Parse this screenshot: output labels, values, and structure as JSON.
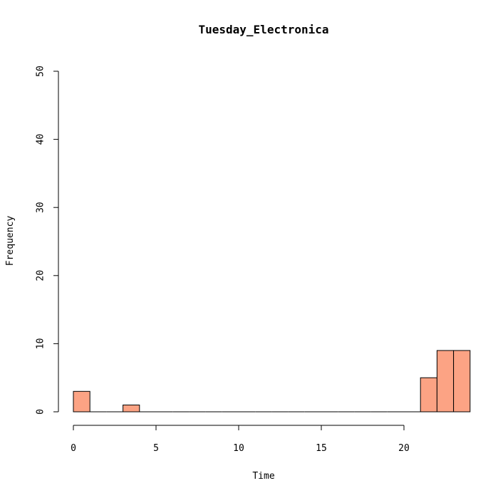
{
  "chart_data": {
    "type": "bar",
    "title": "Tuesday_Electronica",
    "xlabel": "Time",
    "ylabel": "Frequency",
    "xlim": [
      0,
      24
    ],
    "ylim": [
      0,
      50
    ],
    "x_ticks": [
      0,
      5,
      10,
      15,
      20
    ],
    "y_ticks": [
      0,
      10,
      20,
      30,
      40,
      50
    ],
    "bins": [
      {
        "start": 0,
        "end": 1,
        "value": 3
      },
      {
        "start": 1,
        "end": 2,
        "value": 0
      },
      {
        "start": 2,
        "end": 3,
        "value": 0
      },
      {
        "start": 3,
        "end": 4,
        "value": 1
      },
      {
        "start": 4,
        "end": 5,
        "value": 0
      },
      {
        "start": 5,
        "end": 6,
        "value": 0
      },
      {
        "start": 6,
        "end": 7,
        "value": 0
      },
      {
        "start": 7,
        "end": 8,
        "value": 0
      },
      {
        "start": 8,
        "end": 9,
        "value": 0
      },
      {
        "start": 9,
        "end": 10,
        "value": 0
      },
      {
        "start": 10,
        "end": 11,
        "value": 0
      },
      {
        "start": 11,
        "end": 12,
        "value": 0
      },
      {
        "start": 12,
        "end": 13,
        "value": 0
      },
      {
        "start": 13,
        "end": 14,
        "value": 0
      },
      {
        "start": 14,
        "end": 15,
        "value": 0
      },
      {
        "start": 15,
        "end": 16,
        "value": 0
      },
      {
        "start": 16,
        "end": 17,
        "value": 0
      },
      {
        "start": 17,
        "end": 18,
        "value": 0
      },
      {
        "start": 18,
        "end": 19,
        "value": 0
      },
      {
        "start": 19,
        "end": 20,
        "value": 0
      },
      {
        "start": 20,
        "end": 21,
        "value": 0
      },
      {
        "start": 21,
        "end": 22,
        "value": 5
      },
      {
        "start": 22,
        "end": 23,
        "value": 9
      },
      {
        "start": 23,
        "end": 24,
        "value": 9
      }
    ],
    "bar_color": "#fca384",
    "grid": false,
    "legend": "none"
  }
}
